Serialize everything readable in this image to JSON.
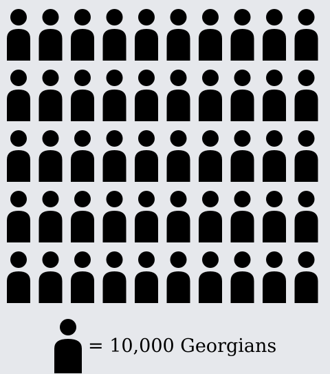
{
  "chart_data": {
    "type": "pictograph",
    "rows": 5,
    "columns": 10,
    "icon_count": 50,
    "icon": "person-icon",
    "unit_value": 10000,
    "total": 500000,
    "legend_label": "= 10,000 Georgians"
  },
  "colors": {
    "background": "#e6e8ec",
    "icon": "#000000"
  }
}
